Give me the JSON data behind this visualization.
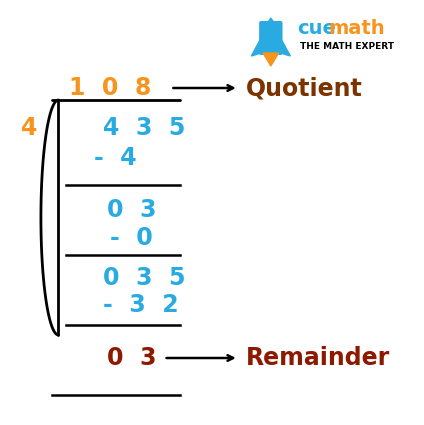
{
  "bg_color": "#ffffff",
  "blue_color": "#29ABE2",
  "orange_color": "#F7941D",
  "dark_brown": "#7B3300",
  "remainder_brown": "#8B1A00",
  "black": "#000000",
  "quotient_label": "Quotient",
  "remainder_label": "Remainder",
  "divisor": "4",
  "figsize": [
    4.24,
    4.25
  ],
  "dpi": 100
}
